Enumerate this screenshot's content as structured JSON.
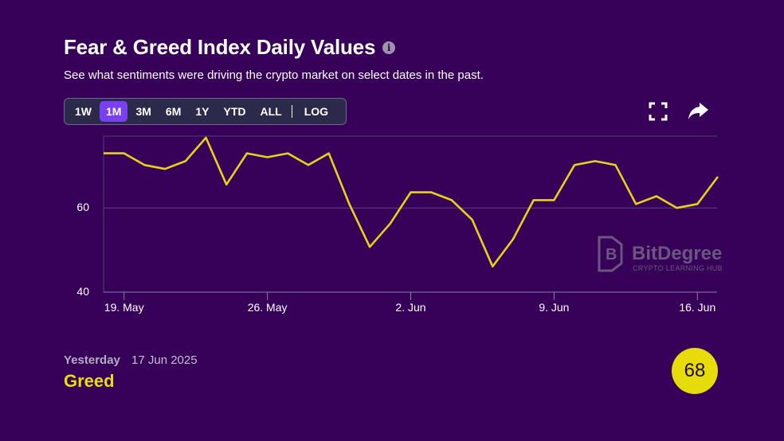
{
  "header": {
    "title": "Fear & Greed Index Daily Values",
    "info_icon": "info-icon",
    "subtitle": "See what sentiments were driving the crypto market on select dates in the past."
  },
  "range_selector": {
    "options": [
      "1W",
      "1M",
      "3M",
      "6M",
      "1Y",
      "YTD",
      "ALL"
    ],
    "selected": "1M",
    "log_label": "LOG"
  },
  "toolbar": {
    "fullscreen_icon": "fullscreen-icon",
    "share_icon": "share-icon"
  },
  "watermark": {
    "brand": "BitDegree",
    "tagline": "CRYPTO LEARNING HUB"
  },
  "chart_data": {
    "type": "line",
    "series": [
      {
        "values": [
          74,
          74,
          71,
          70,
          72,
          78,
          66,
          74,
          73,
          74,
          71,
          74,
          61,
          50,
          56,
          64,
          64,
          62,
          57,
          45,
          52,
          62,
          62,
          71,
          72,
          71,
          61,
          63,
          60,
          61,
          68
        ],
        "color": "#e6d21a"
      }
    ],
    "x": [
      "18 May",
      "19 May",
      "20 May",
      "21 May",
      "22 May",
      "23 May",
      "24 May",
      "25 May",
      "26 May",
      "27 May",
      "28 May",
      "29 May",
      "30 May",
      "31 May",
      "1 Jun",
      "2 Jun",
      "3 Jun",
      "4 Jun",
      "5 Jun",
      "6 Jun",
      "7 Jun",
      "8 Jun",
      "9 Jun",
      "10 Jun",
      "11 Jun",
      "12 Jun",
      "13 Jun",
      "14 Jun",
      "15 Jun",
      "16 Jun",
      "17 Jun"
    ],
    "x_ticks": [
      {
        "label": "19. May",
        "index": 1
      },
      {
        "label": "26. May",
        "index": 8
      },
      {
        "label": "2. Jun",
        "index": 15
      },
      {
        "label": "9. Jun",
        "index": 22
      },
      {
        "label": "16. Jun",
        "index": 29
      }
    ],
    "y_ticks": [
      40,
      60
    ],
    "ylim": [
      38,
      78
    ],
    "grid": true
  },
  "footer": {
    "label": "Yesterday",
    "date": "17 Jun 2025",
    "sentiment": "Greed",
    "score": "68",
    "sentiment_color": "#eadd0d",
    "badge_color": "#e6dc0a"
  }
}
